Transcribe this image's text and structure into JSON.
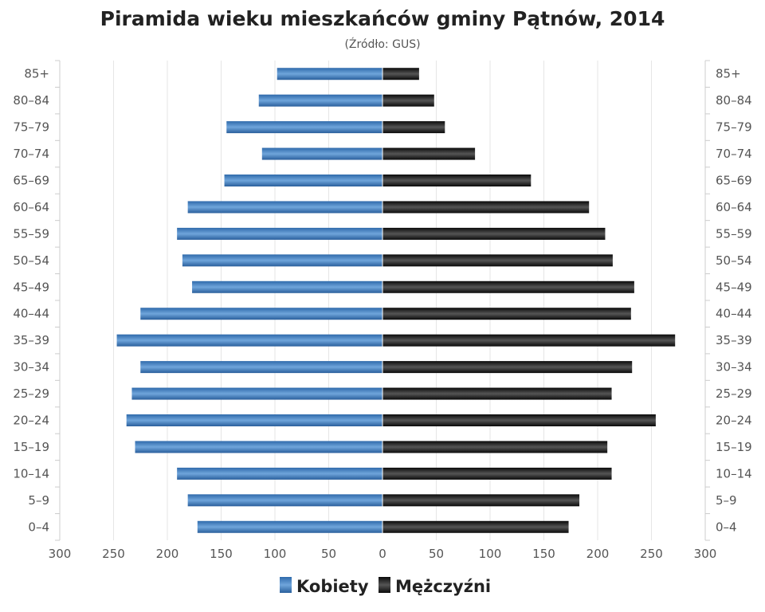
{
  "chart_data": {
    "type": "bar",
    "orientation": "horizontal",
    "title": "Piramida wieku mieszkańców gminy Pątnów, 2014",
    "subtitle": "(Źródło: GUS)",
    "categories": [
      "0–4",
      "5–9",
      "10–14",
      "15–19",
      "20–24",
      "25–29",
      "30–34",
      "35–39",
      "40–44",
      "45–49",
      "50–54",
      "55–59",
      "60–64",
      "65–69",
      "70–74",
      "75–79",
      "80–84",
      "85+"
    ],
    "series": [
      {
        "name": "Kobiety",
        "color": "#3b7dc4",
        "side": "left",
        "values": [
          172,
          181,
          191,
          230,
          238,
          233,
          225,
          247,
          225,
          177,
          186,
          191,
          181,
          147,
          112,
          145,
          115,
          98
        ]
      },
      {
        "name": "Mężczyźni",
        "color": "#1a1a1a",
        "side": "right",
        "values": [
          173,
          183,
          213,
          209,
          254,
          213,
          232,
          272,
          231,
          234,
          214,
          207,
          192,
          138,
          86,
          58,
          48,
          34
        ]
      }
    ],
    "xlim": [
      -300,
      300
    ],
    "x_ticks": [
      "300",
      "250",
      "200",
      "150",
      "100",
      "50",
      "0",
      "50",
      "100",
      "150",
      "200",
      "250",
      "300"
    ],
    "grid": true,
    "legend": "bottom-center"
  }
}
